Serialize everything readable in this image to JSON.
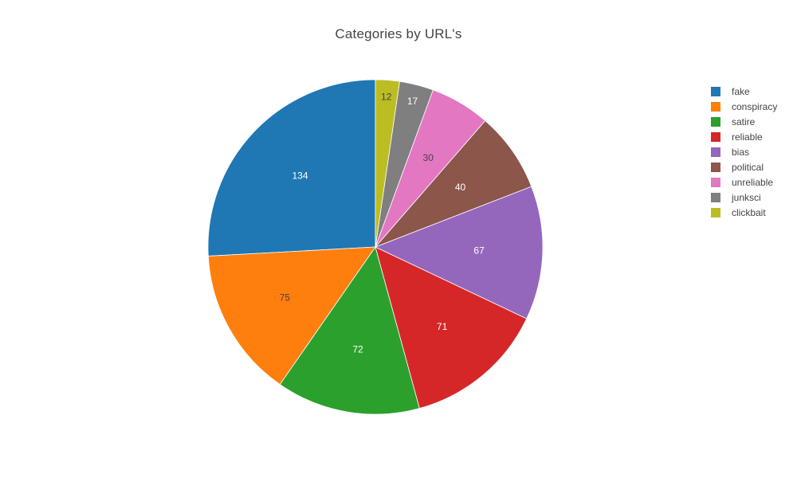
{
  "chart_data": {
    "type": "pie",
    "title": "Categories by URL's",
    "categories": [
      "fake",
      "conspiracy",
      "satire",
      "reliable",
      "bias",
      "political",
      "unreliable",
      "junksci",
      "clickbait"
    ],
    "values": [
      134,
      75,
      72,
      71,
      67,
      40,
      30,
      17,
      12
    ],
    "colors": [
      "#1f77b4",
      "#ff7f0e",
      "#2ca02c",
      "#d62728",
      "#9467bd",
      "#8c564b",
      "#e377c2",
      "#7f7f7f",
      "#bcbd22"
    ],
    "label_colors": [
      "#ffffff",
      "#444444",
      "#ffffff",
      "#ffffff",
      "#ffffff",
      "#ffffff",
      "#444444",
      "#ffffff",
      "#444444"
    ],
    "direction": "counterclockwise",
    "start": "top",
    "legend_position": "right",
    "show_values_on_slices": true
  }
}
